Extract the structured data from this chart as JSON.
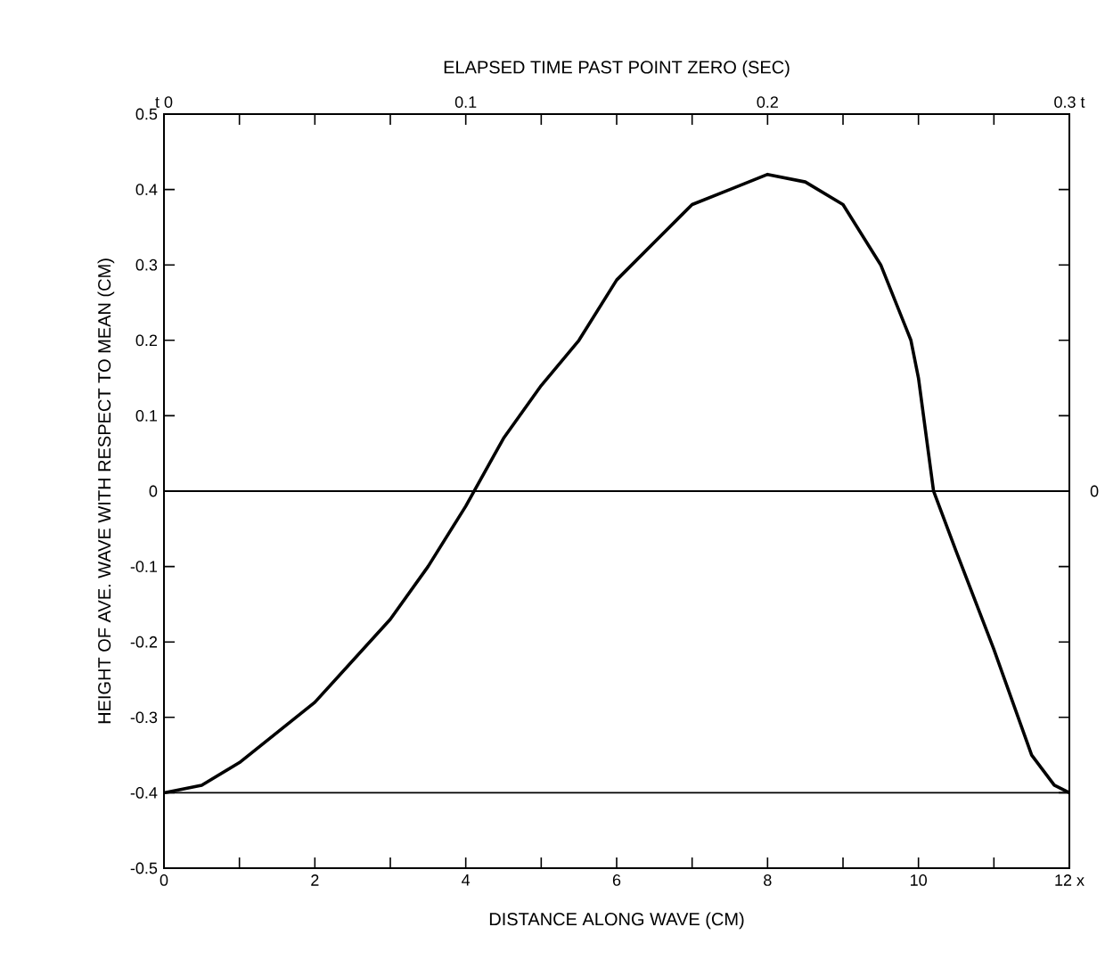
{
  "chart_data": {
    "type": "line",
    "xlabel": "DISTANCE ALONG WAVE (CM)",
    "ylabel": "HEIGHT OF AVE. WAVE WITH RESPECT TO MEAN (CM)",
    "x2label": "ELAPSED TIME PAST POINT ZERO (SEC)",
    "series": [
      {
        "color": "#000000",
        "x": [
          0,
          0.5,
          1,
          2,
          3,
          3.5,
          4,
          4.5,
          5,
          5.5,
          6,
          6.5,
          7,
          7.5,
          8,
          8.5,
          9,
          9.5,
          9.9,
          10,
          10.2,
          10.5,
          11,
          11.5,
          11.8,
          12
        ],
        "values": [
          -0.4,
          -0.39,
          -0.36,
          -0.28,
          -0.17,
          -0.1,
          -0.02,
          0.07,
          0.14,
          0.2,
          0.28,
          0.33,
          0.38,
          0.4,
          0.42,
          0.41,
          0.38,
          0.3,
          0.2,
          0.15,
          0.0,
          -0.08,
          -0.21,
          -0.35,
          -0.39,
          -0.4
        ]
      }
    ],
    "xlim": [
      0,
      12
    ],
    "ylim": [
      -0.5,
      0.5
    ],
    "xticks": [
      0,
      {
        "value": 1,
        "label": null
      },
      2,
      {
        "value": 3,
        "label": null
      },
      4,
      {
        "value": 5,
        "label": null
      },
      6,
      {
        "value": 7,
        "label": null
      },
      8,
      {
        "value": 9,
        "label": null
      },
      10,
      {
        "value": 11,
        "label": null
      },
      {
        "value": 12,
        "label": "12 x"
      }
    ],
    "yticks": [
      -0.5,
      -0.4,
      -0.3,
      -0.2,
      -0.1,
      0,
      0.1,
      0.2,
      0.3,
      0.4,
      0.5
    ],
    "x2lim": [
      0,
      0.3
    ],
    "x2ticks": [
      {
        "value": 0,
        "label": "t 0"
      },
      {
        "value": 0.025,
        "label": null
      },
      {
        "value": 0.05,
        "label": null
      },
      {
        "value": 0.075,
        "label": null
      },
      0.1,
      {
        "value": 0.125,
        "label": null
      },
      {
        "value": 0.15,
        "label": null
      },
      {
        "value": 0.175,
        "label": null
      },
      0.2,
      {
        "value": 0.225,
        "label": null
      },
      {
        "value": 0.25,
        "label": null
      },
      {
        "value": 0.275,
        "label": null
      },
      {
        "value": 0.3,
        "label": "0.3 t"
      }
    ],
    "annotations": [
      {
        "text": "0",
        "x": 12,
        "y": 0
      }
    ],
    "ref_lines": [
      {
        "axis": "y",
        "value": 0
      },
      {
        "axis": "y",
        "value": -0.4
      }
    ],
    "grid": false,
    "legend": false,
    "marker": "none",
    "line_style": "solid"
  }
}
